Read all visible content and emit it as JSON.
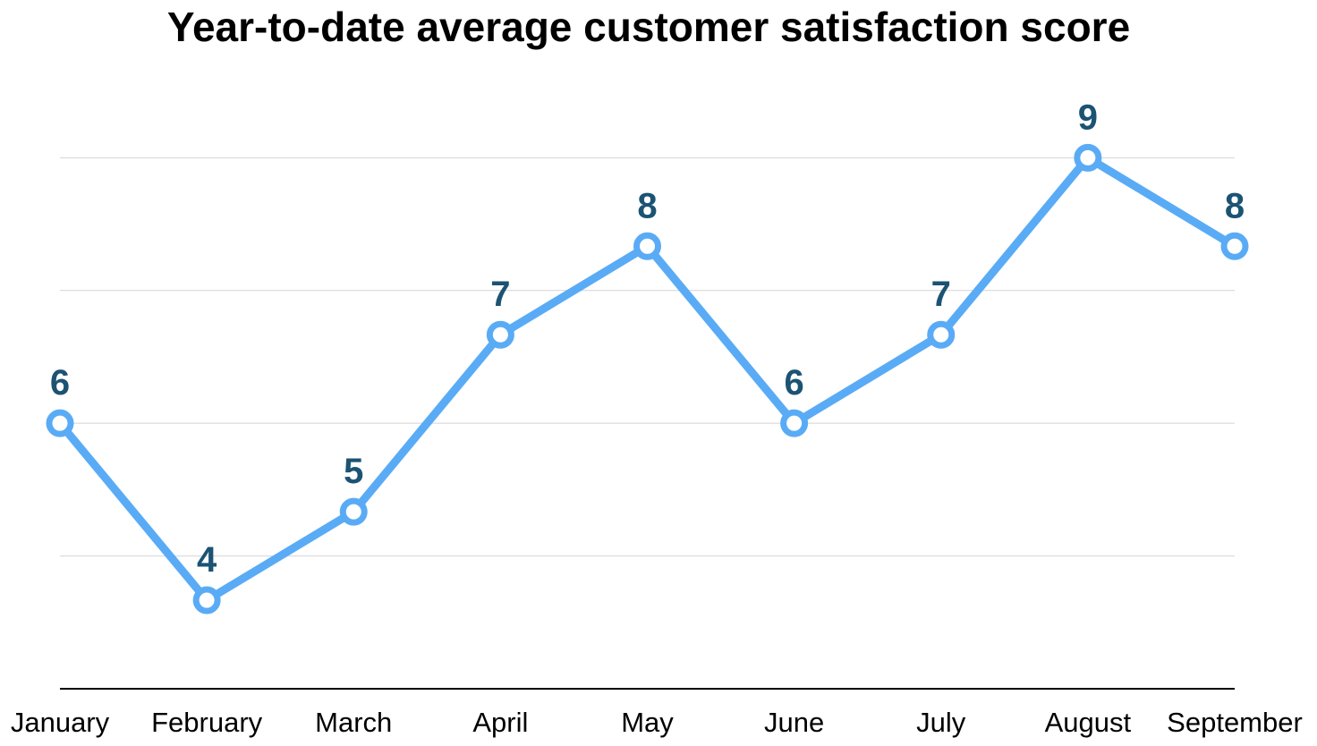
{
  "chart_data": {
    "type": "line",
    "title": "Year-to-date average customer satisfaction score",
    "xlabel": "",
    "ylabel": "",
    "categories": [
      "January",
      "February",
      "March",
      "April",
      "May",
      "June",
      "July",
      "August",
      "September"
    ],
    "series": [
      {
        "values": [
          6,
          4,
          5,
          7,
          8,
          6,
          7,
          9,
          8
        ]
      }
    ],
    "ylim": [
      3,
      9.6
    ],
    "grid": true,
    "legend": "none",
    "colors": {
      "line": "#5aabf5",
      "marker_fill": "#ffffff",
      "data_label": "#1c5373",
      "grid": "#d4d4d4",
      "axis": "#000000"
    }
  }
}
